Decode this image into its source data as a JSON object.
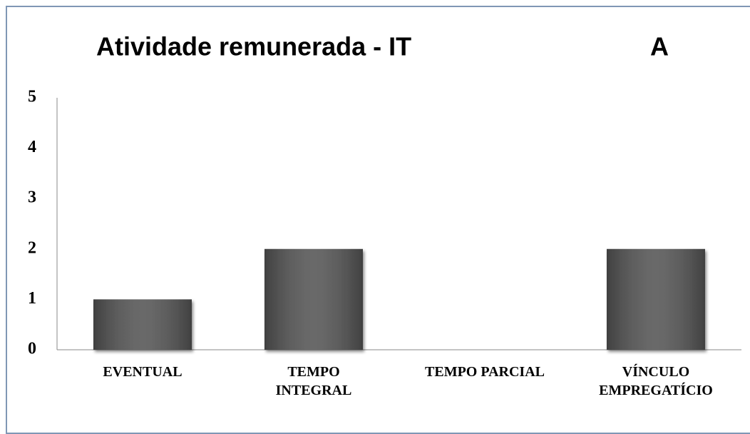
{
  "chart_data": {
    "type": "bar",
    "title": "Atividade remunerada - IT",
    "annotation": "A",
    "categories": [
      "EVENTUAL",
      "TEMPO INTEGRAL",
      "TEMPO PARCIAL",
      "VÍNCULO EMPREGATÍCIO"
    ],
    "values": [
      1,
      2,
      0,
      2
    ],
    "color": "#555555",
    "ylim": [
      0,
      5
    ],
    "yticks": [
      0,
      1,
      2,
      3,
      4,
      5
    ],
    "grid": false
  }
}
